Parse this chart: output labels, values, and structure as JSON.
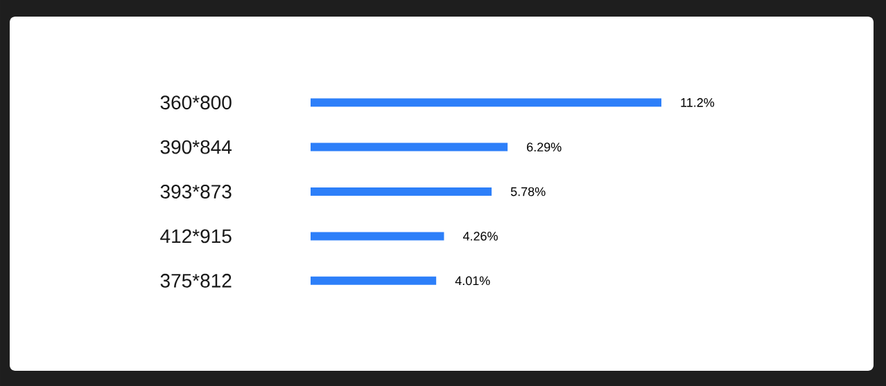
{
  "chart_data": {
    "type": "bar",
    "orientation": "horizontal",
    "categories": [
      "360*800",
      "390*844",
      "393*873",
      "412*915",
      "375*812"
    ],
    "values": [
      11.2,
      6.29,
      5.78,
      4.26,
      4.01
    ],
    "value_labels": [
      "11.2%",
      "6.29%",
      "5.78%",
      "4.26%",
      "4.01%"
    ],
    "color": "#2d7ff9"
  }
}
